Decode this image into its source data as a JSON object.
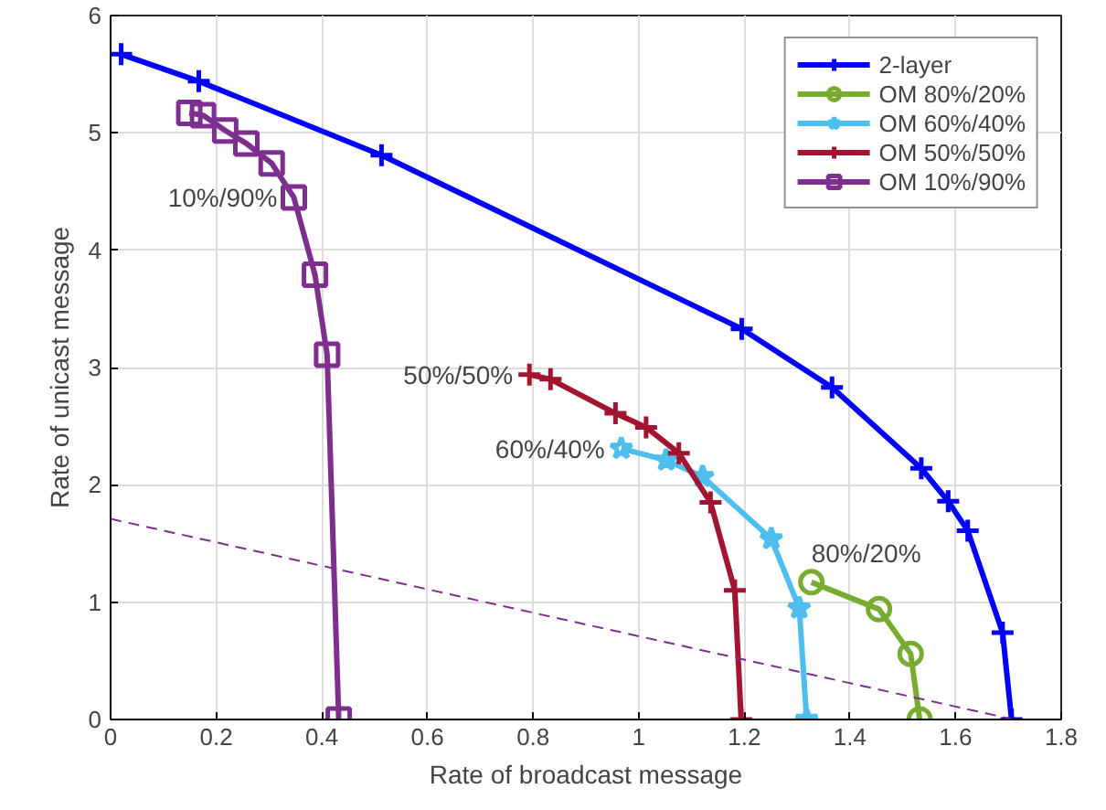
{
  "chart_data": {
    "type": "line",
    "xlabel": "Rate of broadcast message",
    "ylabel": "Rate of unicast message",
    "xlim": [
      0,
      1.8
    ],
    "ylim": [
      0,
      6
    ],
    "xticks": [
      0,
      0.2,
      0.4,
      0.6,
      0.8,
      1,
      1.2,
      1.4,
      1.6,
      1.8
    ],
    "yticks": [
      0,
      1,
      2,
      3,
      4,
      5,
      6
    ],
    "grid": true,
    "legend": "top right",
    "series": [
      {
        "name": "2-layer",
        "color": "#0000ff",
        "marker": "cross",
        "x": [
          0.02,
          0.167,
          0.513,
          1.195,
          1.366,
          1.535,
          1.586,
          1.623,
          1.689,
          1.706
        ],
        "values": [
          5.67,
          5.44,
          4.81,
          3.33,
          2.83,
          2.14,
          1.86,
          1.61,
          0.74,
          0
        ]
      },
      {
        "name": "OM 80%/20%",
        "color": "#77ac30",
        "marker": "circle",
        "x": [
          1.327,
          1.455,
          1.515,
          1.532
        ],
        "values": [
          1.17,
          0.94,
          0.56,
          0
        ]
      },
      {
        "name": "OM 60%/40%",
        "color": "#4dbeee",
        "marker": "star",
        "x": [
          0.967,
          1.052,
          1.121,
          1.251,
          1.304,
          1.318
        ],
        "values": [
          2.31,
          2.21,
          2.07,
          1.54,
          0.95,
          0
        ]
      },
      {
        "name": "OM 50%/50%",
        "color": "#a2142f",
        "marker": "cross",
        "x": [
          0.793,
          0.833,
          0.956,
          1.014,
          1.076,
          1.136,
          1.182,
          1.194
        ],
        "values": [
          2.94,
          2.9,
          2.61,
          2.49,
          2.27,
          1.85,
          1.1,
          0
        ]
      },
      {
        "name": "OM 10%/90%",
        "color": "#7e2f8e",
        "marker": "square",
        "x": [
          0.149,
          0.175,
          0.217,
          0.257,
          0.305,
          0.347,
          0.387,
          0.41,
          0.432
        ],
        "values": [
          5.17,
          5.15,
          5.02,
          4.91,
          4.74,
          4.45,
          3.79,
          3.11,
          0
        ]
      },
      {
        "color": "#7e2f8e",
        "marker": "none",
        "line_style": "dashed",
        "x": [
          0,
          1.71
        ],
        "values": [
          1.71,
          0
        ]
      }
    ],
    "annotations": [
      {
        "text": "10%/90%",
        "x": 0.347,
        "y": 4.45
      },
      {
        "text": "50%/50%",
        "x": 0.793,
        "y": 2.94
      },
      {
        "text": "60%/40%",
        "x": 0.967,
        "y": 2.31
      },
      {
        "text": "80%/20%",
        "x": 1.327,
        "y": 1.17
      }
    ]
  }
}
